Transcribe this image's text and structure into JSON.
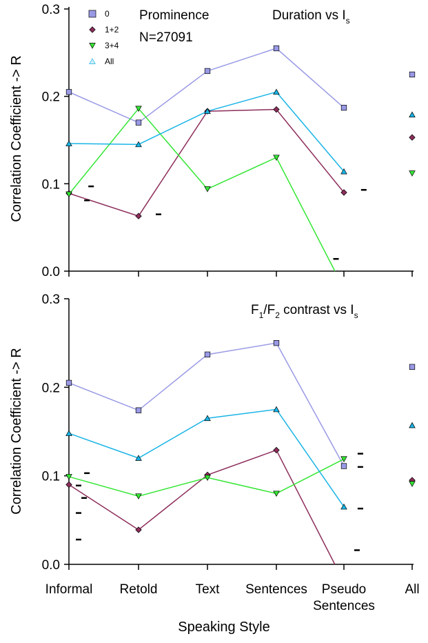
{
  "colors": {
    "s0": "#9999e6",
    "s12": "#8c2d5a",
    "s34": "#33e633",
    "all": "#19b4e6"
  },
  "chart_data": [
    {
      "type": "line",
      "title": "Duration vs Is",
      "title_main": "Duration vs I",
      "title_sub": "s",
      "annotation": "Prominence",
      "count_text": "N=27091",
      "ylabel": "Correlation Coefficient -> R",
      "ylim": [
        0,
        0.3
      ],
      "yticks": [
        "0.0",
        "0.1",
        "0.2",
        "0.3"
      ],
      "legend": [
        {
          "label": "0",
          "marker": "square"
        },
        {
          "label": "1+2",
          "marker": "diamond"
        },
        {
          "label": "3+4",
          "marker": "triangle-down"
        },
        {
          "label": "All",
          "marker": "triangle-up"
        }
      ],
      "categories": [
        "Informal",
        "Retold",
        "Text",
        "Sentences",
        "Pseudo Sentences",
        "All"
      ],
      "series": [
        {
          "name": "0",
          "marker": "square",
          "color": "#9999e6",
          "values": [
            0.205,
            0.17,
            0.229,
            0.255,
            0.187,
            0.225
          ]
        },
        {
          "name": "1+2",
          "marker": "diamond",
          "color": "#8c2d5a",
          "values": [
            0.089,
            0.063,
            0.183,
            0.185,
            0.09,
            0.153
          ]
        },
        {
          "name": "3+4",
          "marker": "triangle-down",
          "color": "#33e633",
          "values": [
            0.088,
            0.186,
            0.094,
            0.13,
            -0.02,
            0.112
          ]
        },
        {
          "name": "All",
          "marker": "triangle-up",
          "color": "#19b4e6",
          "values": [
            0.146,
            0.145,
            0.183,
            0.205,
            0.114,
            0.179
          ]
        }
      ],
      "dashes": [
        {
          "x": 0.18,
          "y": 0.097
        },
        {
          "x": 0.12,
          "y": 0.081
        },
        {
          "x": 1.15,
          "y": 0.065
        },
        {
          "x": 4.15,
          "y": 0.093
        },
        {
          "x": 3.74,
          "y": 0.014
        }
      ]
    },
    {
      "type": "line",
      "title": "F1/F2 contrast vs Is",
      "title_parts": [
        {
          "t": "F",
          "sub": false
        },
        {
          "t": "1",
          "sub": true
        },
        {
          "t": "/F",
          "sub": false
        },
        {
          "t": "2",
          "sub": true
        },
        {
          "t": " contrast vs I",
          "sub": false
        },
        {
          "t": "s",
          "sub": true
        }
      ],
      "ylabel": "Correlation Coefficient -> R",
      "xlabel": "Speaking Style",
      "ylim": [
        0,
        0.3
      ],
      "yticks": [
        "0.0",
        "0.1",
        "0.2",
        "0.3"
      ],
      "categories": [
        "Informal",
        "Retold",
        "Text",
        "Sentences",
        "Pseudo Sentences",
        "All"
      ],
      "category_labels": [
        [
          "Informal"
        ],
        [
          "Retold"
        ],
        [
          "Text"
        ],
        [
          "Sentences"
        ],
        [
          "Pseudo",
          "Sentences"
        ],
        [
          "All"
        ]
      ],
      "series": [
        {
          "name": "0",
          "marker": "square",
          "color": "#9999e6",
          "values": [
            0.205,
            0.174,
            0.237,
            0.25,
            0.111,
            0.223
          ]
        },
        {
          "name": "1+2",
          "marker": "diamond",
          "color": "#8c2d5a",
          "values": [
            0.09,
            0.039,
            0.101,
            0.129,
            -0.02,
            0.095
          ]
        },
        {
          "name": "3+4",
          "marker": "triangle-down",
          "color": "#33e633",
          "values": [
            0.099,
            0.077,
            0.098,
            0.08,
            0.119,
            0.091
          ]
        },
        {
          "name": "All",
          "marker": "triangle-up",
          "color": "#19b4e6",
          "values": [
            0.148,
            0.12,
            0.165,
            0.175,
            0.065,
            0.157
          ]
        }
      ],
      "dashes": [
        {
          "x": 0.12,
          "y": 0.103
        },
        {
          "x": 0.08,
          "y": 0.075
        },
        {
          "x": 0.0,
          "y": 0.089
        },
        {
          "x": 0.0,
          "y": 0.058
        },
        {
          "x": 0.0,
          "y": 0.028
        },
        {
          "x": 4.1,
          "y": 0.125
        },
        {
          "x": 4.1,
          "y": 0.11
        },
        {
          "x": 4.1,
          "y": 0.063
        },
        {
          "x": 4.05,
          "y": 0.016
        }
      ]
    }
  ]
}
